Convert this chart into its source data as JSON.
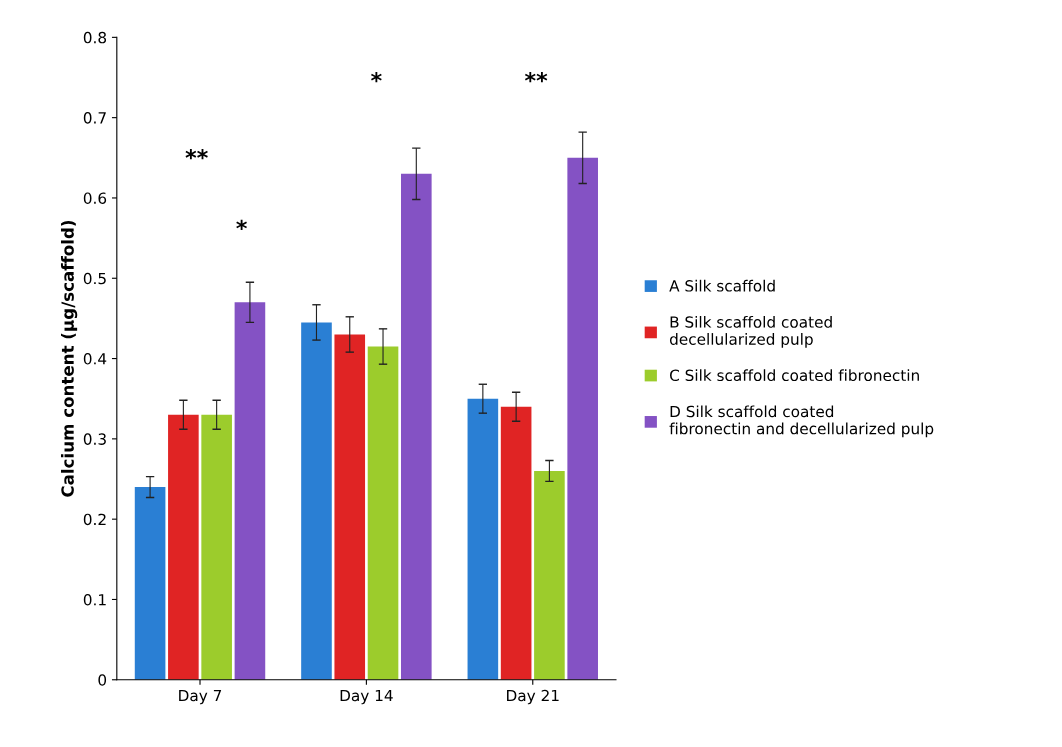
{
  "chart_data": {
    "type": "bar",
    "ylabel": "Calcium content (µg/scaffold)",
    "categories": [
      "Day 7",
      "Day 14",
      "Day 21"
    ],
    "series": [
      {
        "name": "A Silk scaffold",
        "color": "#2a7fd4",
        "values": [
          0.24,
          0.445,
          0.35
        ],
        "errors": [
          0.013,
          0.022,
          0.018
        ]
      },
      {
        "name": "B Silk scaffold coated decellularized pulp",
        "color": "#e02424",
        "values": [
          0.33,
          0.43,
          0.34
        ],
        "errors": [
          0.018,
          0.022,
          0.018
        ]
      },
      {
        "name": "C Silk scaffold coated fibronectin",
        "color": "#9ccc2c",
        "values": [
          0.33,
          0.415,
          0.26
        ],
        "errors": [
          0.018,
          0.022,
          0.013
        ]
      },
      {
        "name": "D Silk scaffold coated fibronectin and decellularized pulp",
        "color": "#8452c4",
        "values": [
          0.47,
          0.63,
          0.65
        ],
        "errors": [
          0.025,
          0.032,
          0.032
        ]
      }
    ],
    "ylim": [
      0,
      0.8
    ],
    "yticks": [
      0,
      0.1,
      0.2,
      0.3,
      0.4,
      0.5,
      0.6,
      0.7,
      0.8
    ],
    "annotations": [
      "**",
      "*",
      "*",
      "**"
    ],
    "grid": false,
    "legend": "right"
  }
}
